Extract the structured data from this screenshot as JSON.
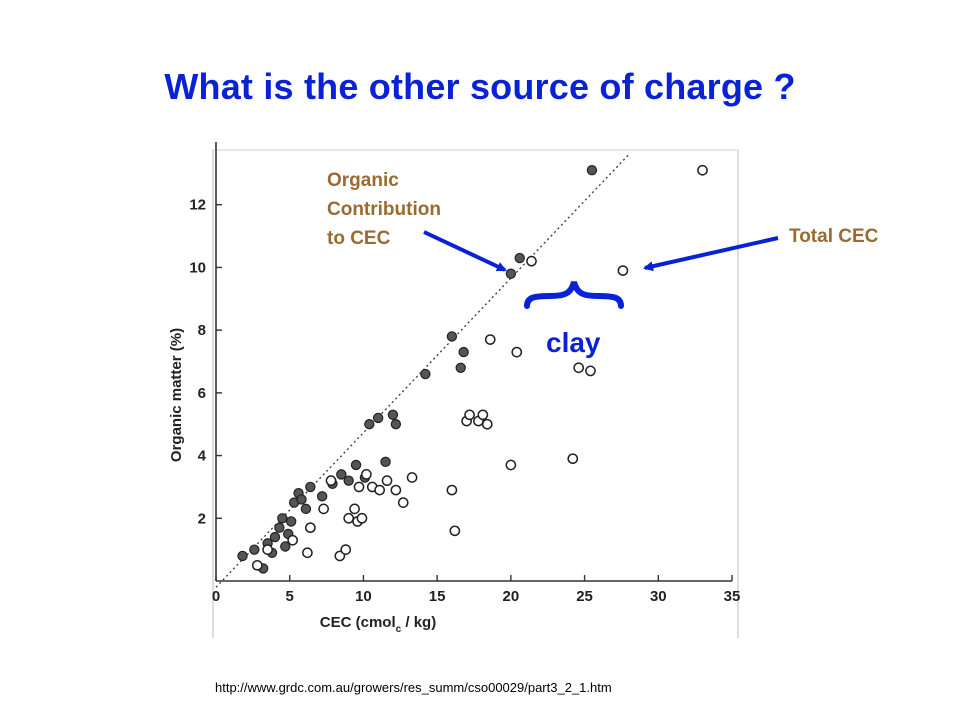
{
  "title": "What is the other source of charge ?",
  "annotations": {
    "organic": [
      "Organic",
      "Contribution",
      "to CEC"
    ],
    "total": "Total CEC",
    "clay": "clay"
  },
  "source_url": "http://www.grdc.com.au/growers/res_summ/cso00029/part3_2_1.htm",
  "colors": {
    "title": "#0a22d6",
    "annotation_brown": "#9a6a32",
    "arrow_blue": "#0a22d6",
    "filled_marker": "#555555"
  },
  "chart_data": {
    "type": "scatter",
    "xlabel": "CEC (cmol",
    "xlabel_sub": "c",
    "xlabel_tail": " / kg)",
    "ylabel": "Organic matter (%)",
    "xlim": [
      0,
      35
    ],
    "ylim": [
      0,
      14
    ],
    "xticks": [
      0,
      5,
      10,
      15,
      20,
      25,
      30,
      35
    ],
    "yticks": [
      2,
      4,
      6,
      8,
      10,
      12
    ],
    "grid": false,
    "trend_line": [
      [
        0,
        -0.2
      ],
      [
        28,
        13.6
      ]
    ],
    "series": [
      {
        "style": "filled",
        "points": [
          [
            1.8,
            0.8
          ],
          [
            2.6,
            1.0
          ],
          [
            3.2,
            0.4
          ],
          [
            3.5,
            1.2
          ],
          [
            3.8,
            0.9
          ],
          [
            4.0,
            1.4
          ],
          [
            4.3,
            1.7
          ],
          [
            4.5,
            2.0
          ],
          [
            4.7,
            1.1
          ],
          [
            4.9,
            1.5
          ],
          [
            5.1,
            1.9
          ],
          [
            5.3,
            2.5
          ],
          [
            5.6,
            2.8
          ],
          [
            5.8,
            2.6
          ],
          [
            6.1,
            2.3
          ],
          [
            6.4,
            3.0
          ],
          [
            7.2,
            2.7
          ],
          [
            7.9,
            3.1
          ],
          [
            8.5,
            3.4
          ],
          [
            9.0,
            3.2
          ],
          [
            9.5,
            3.7
          ],
          [
            10.1,
            3.3
          ],
          [
            10.4,
            5.0
          ],
          [
            11.0,
            5.2
          ],
          [
            11.5,
            3.8
          ],
          [
            12.0,
            5.3
          ],
          [
            12.2,
            5.0
          ],
          [
            14.2,
            6.6
          ],
          [
            16.0,
            7.8
          ],
          [
            16.6,
            6.8
          ],
          [
            16.8,
            7.3
          ],
          [
            20.0,
            9.8
          ],
          [
            20.6,
            10.3
          ],
          [
            25.5,
            13.1
          ]
        ]
      },
      {
        "style": "open",
        "points": [
          [
            2.8,
            0.5
          ],
          [
            3.5,
            1.0
          ],
          [
            5.2,
            1.3
          ],
          [
            6.2,
            0.9
          ],
          [
            6.4,
            1.7
          ],
          [
            7.3,
            2.3
          ],
          [
            7.8,
            3.2
          ],
          [
            8.4,
            0.8
          ],
          [
            8.8,
            1.0
          ],
          [
            9.0,
            2.0
          ],
          [
            9.4,
            2.3
          ],
          [
            9.6,
            1.9
          ],
          [
            9.9,
            2.0
          ],
          [
            9.7,
            3.0
          ],
          [
            10.2,
            3.4
          ],
          [
            10.6,
            3.0
          ],
          [
            11.1,
            2.9
          ],
          [
            11.6,
            3.2
          ],
          [
            12.2,
            2.9
          ],
          [
            12.7,
            2.5
          ],
          [
            13.3,
            3.3
          ],
          [
            16.0,
            2.9
          ],
          [
            16.2,
            1.6
          ],
          [
            17.0,
            5.1
          ],
          [
            17.2,
            5.3
          ],
          [
            17.8,
            5.1
          ],
          [
            18.1,
            5.3
          ],
          [
            18.4,
            5.0
          ],
          [
            18.6,
            7.7
          ],
          [
            20.0,
            3.7
          ],
          [
            20.4,
            7.3
          ],
          [
            21.4,
            10.2
          ],
          [
            24.2,
            3.9
          ],
          [
            24.6,
            6.8
          ],
          [
            25.4,
            6.7
          ],
          [
            27.6,
            9.9
          ],
          [
            33.0,
            13.1
          ]
        ]
      }
    ]
  }
}
